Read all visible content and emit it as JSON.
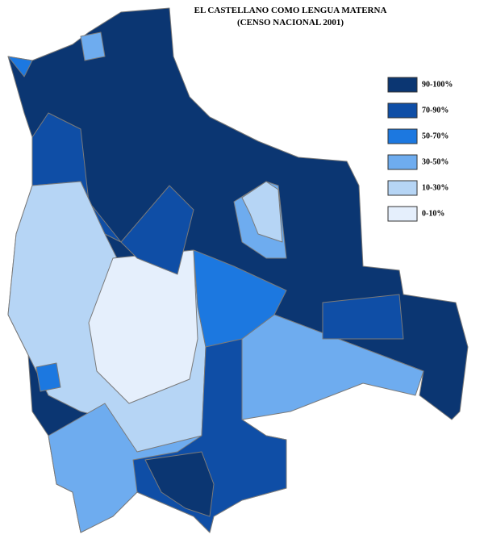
{
  "title": [
    "EL CASTELLANO COMO LENGUA MATERNA",
    "(CENSO NACIONAL 2001)"
  ],
  "legend": [
    {
      "label": "90-100%",
      "color": "#0b3672"
    },
    {
      "label": "70-90%",
      "color": "#0f4ea6"
    },
    {
      "label": "50-70%",
      "color": "#1c78e0"
    },
    {
      "label": "30-50%",
      "color": "#6eacef"
    },
    {
      "label": "10-30%",
      "color": "#b6d5f5"
    },
    {
      "label": "0-10%",
      "color": "#e5effc"
    }
  ]
}
